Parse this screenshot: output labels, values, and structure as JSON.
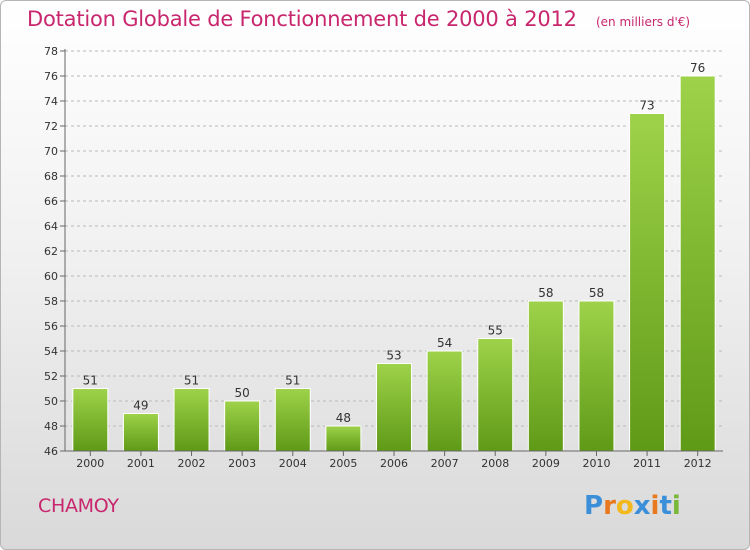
{
  "commune": "CHAMOY",
  "logo": {
    "text": "Proxiti",
    "letter_colors": [
      "#3b8fd9",
      "#e8791f",
      "#f2b81c",
      "#3b8fd9",
      "#e8791f",
      "#3b8fd9",
      "#7ab83a"
    ]
  },
  "chart_data": {
    "type": "bar",
    "title": "Dotation Globale de Fonctionnement de 2000 à 2012",
    "unit": "(en milliers d'€)",
    "categories": [
      "2000",
      "2001",
      "2002",
      "2003",
      "2004",
      "2005",
      "2006",
      "2007",
      "2008",
      "2009",
      "2010",
      "2011",
      "2012"
    ],
    "values": [
      51,
      49,
      51,
      50,
      51,
      48,
      53,
      54,
      55,
      58,
      58,
      73,
      76
    ],
    "ylim": [
      46,
      78
    ],
    "ytick_step": 2,
    "grid": true,
    "bar_color": "#7bbf2e"
  }
}
